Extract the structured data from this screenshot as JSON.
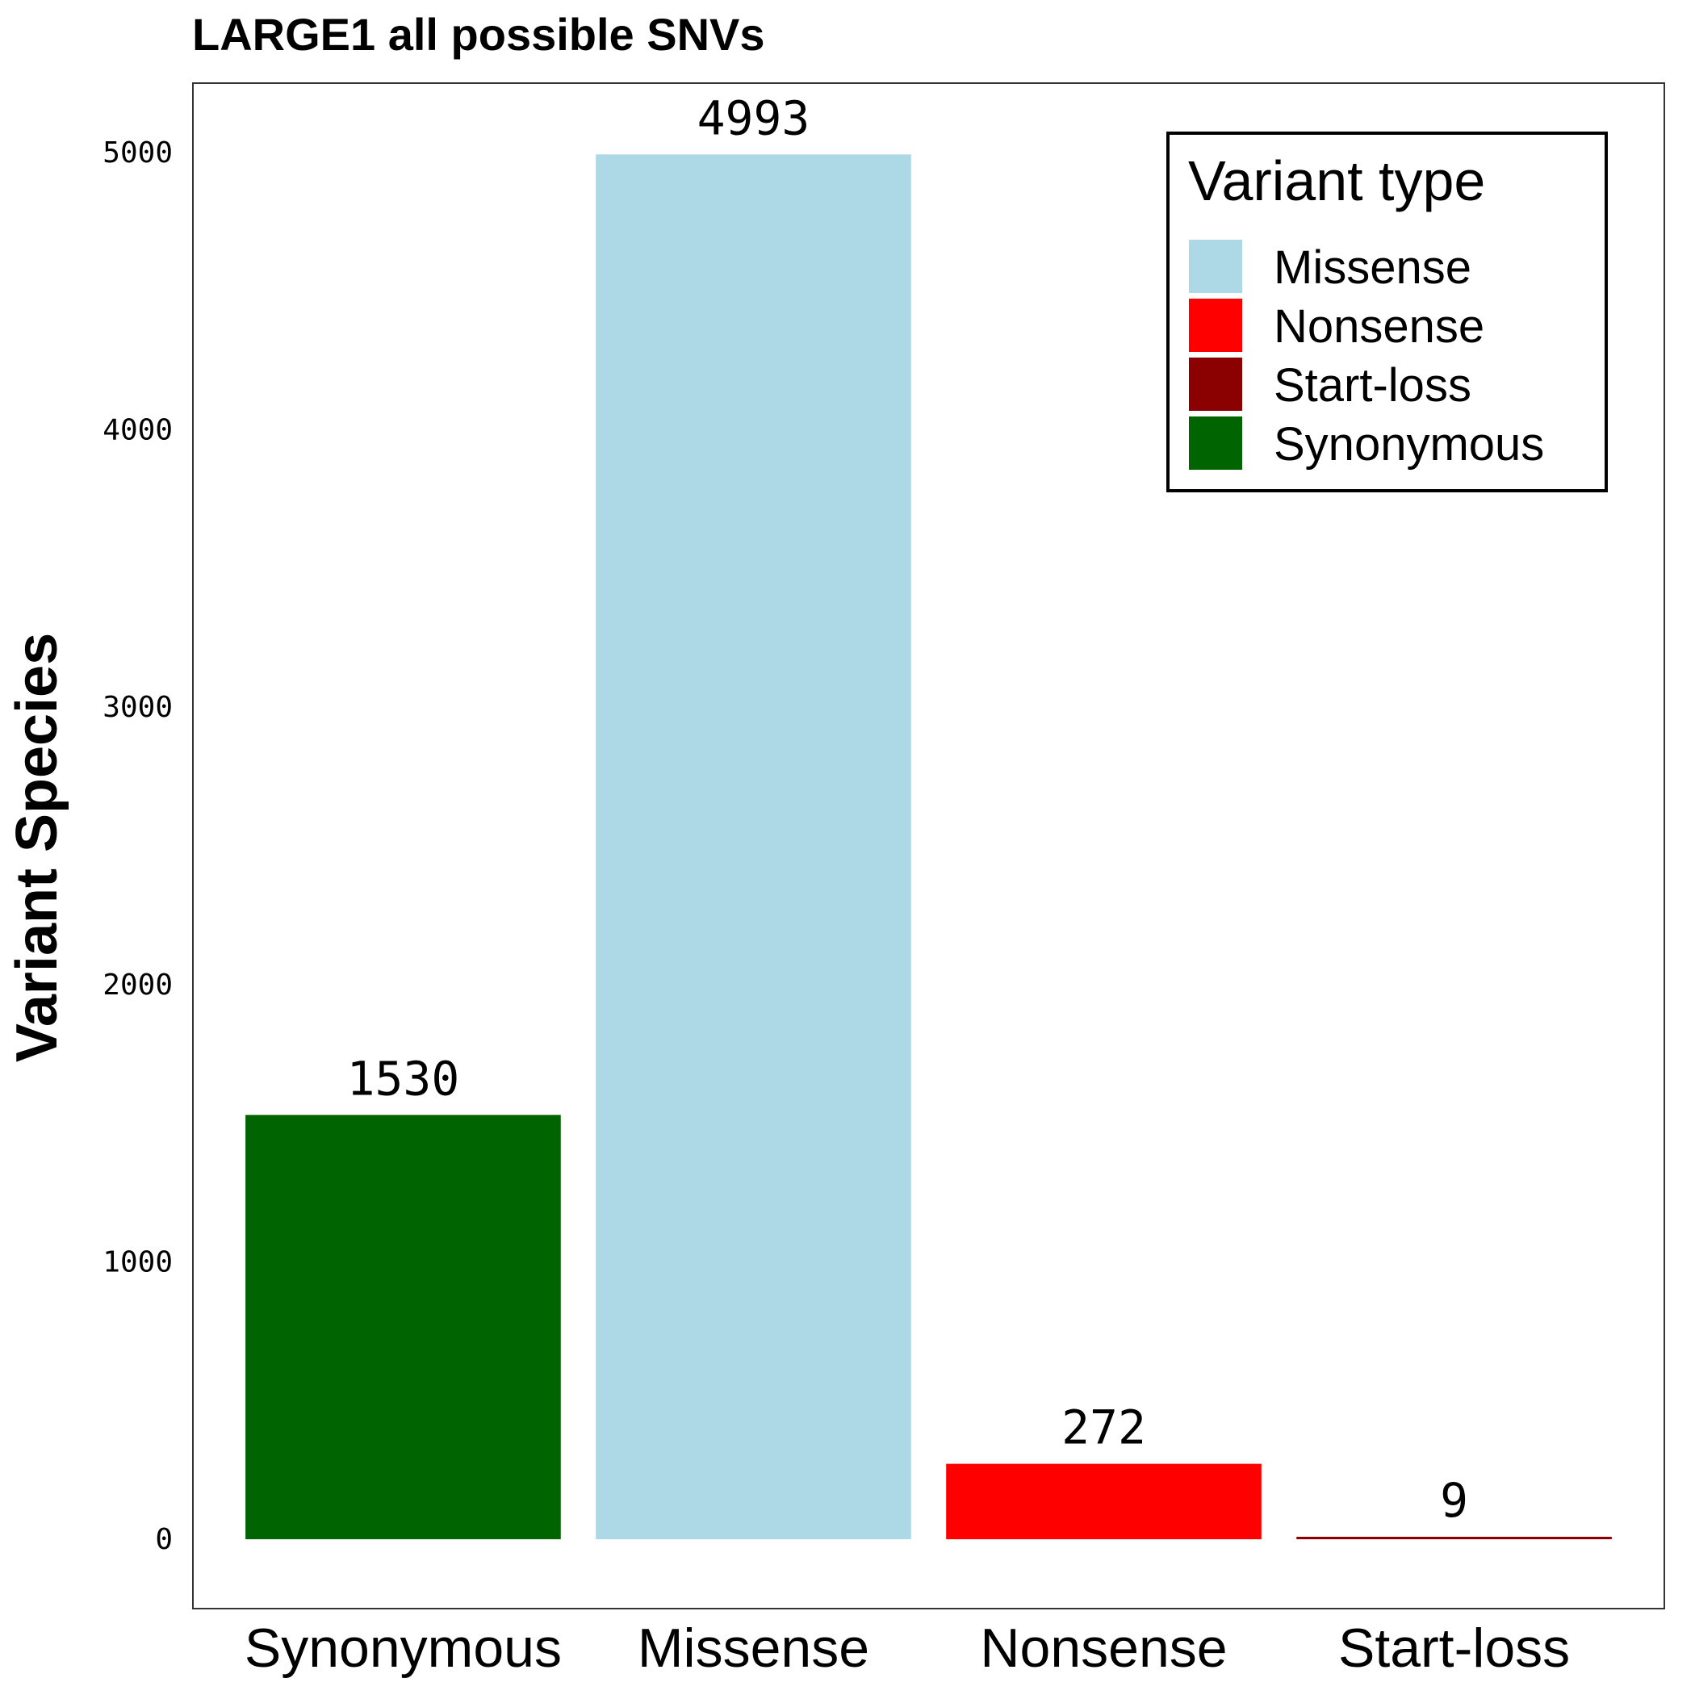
{
  "chart_data": {
    "type": "bar",
    "title": "LARGE1 all possible SNVs",
    "xlabel": "",
    "ylabel": "Variant Species",
    "categories": [
      "Synonymous",
      "Missense",
      "Nonsense",
      "Start-loss"
    ],
    "values": [
      1530,
      4993,
      272,
      9
    ],
    "value_labels": [
      "1530",
      "4993",
      "272",
      "9"
    ],
    "colors": [
      "#006400",
      "#ADD8E6",
      "#FF0000",
      "#8B0000"
    ],
    "ylim": [
      -250,
      5250
    ],
    "yticks": [
      0,
      1000,
      2000,
      3000,
      4000,
      5000
    ],
    "ytick_labels": [
      "0",
      "1000",
      "2000",
      "3000",
      "4000",
      "5000"
    ],
    "grid": false,
    "legend": {
      "title": "Variant type",
      "placement": "top-right",
      "items": [
        {
          "label": "Missense",
          "color": "#ADD8E6"
        },
        {
          "label": "Nonsense",
          "color": "#FF0000"
        },
        {
          "label": "Start-loss",
          "color": "#8B0000"
        },
        {
          "label": "Synonymous",
          "color": "#006400"
        }
      ]
    }
  }
}
